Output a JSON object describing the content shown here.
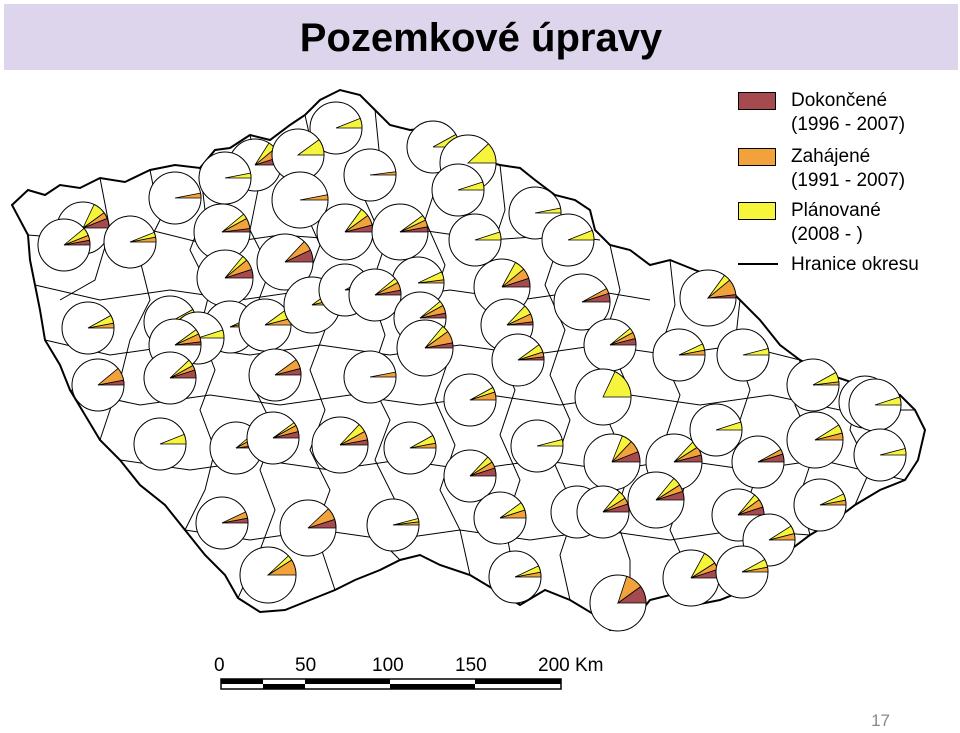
{
  "title": "Pozemkové úpravy",
  "legend": {
    "completed": {
      "line1": "Dokončené",
      "line2": "(1996 - 2007)",
      "color": "#a54a4e"
    },
    "started": {
      "line1": "Zahájené",
      "line2": "(1991 - 2007)",
      "color": "#f2a23a"
    },
    "planned": {
      "line1": "Plánované",
      "line2": "(2008 -    )",
      "color": "#f7f43c"
    },
    "boundary": {
      "label": "Hranice okresu",
      "color": "#000000"
    }
  },
  "scale_bar": {
    "ticks": [
      "0",
      "50",
      "100",
      "150",
      "200 Km"
    ]
  },
  "page_number": "17"
}
